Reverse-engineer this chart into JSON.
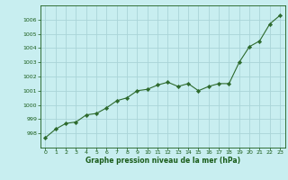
{
  "x": [
    0,
    1,
    2,
    3,
    4,
    5,
    6,
    7,
    8,
    9,
    10,
    11,
    12,
    13,
    14,
    15,
    16,
    17,
    18,
    19,
    20,
    21,
    22,
    23
  ],
  "y": [
    997.7,
    998.3,
    998.7,
    998.8,
    999.3,
    999.4,
    999.8,
    1000.3,
    1000.5,
    1001.0,
    1001.1,
    1001.4,
    1001.6,
    1001.3,
    1001.5,
    1001.0,
    1001.3,
    1001.5,
    1001.5,
    1003.0,
    1004.1,
    1004.5,
    1005.7,
    1006.3
  ],
  "line_color": "#2d6a2d",
  "marker": "D",
  "marker_size": 2.2,
  "bg_color": "#c8eef0",
  "grid_color": "#aad4d8",
  "plot_bg": "#c8eef0",
  "xlabel": "Graphe pression niveau de la mer (hPa)",
  "xlabel_color": "#1a5c1a",
  "tick_color": "#1a5c1a",
  "ylim": [
    997.0,
    1007.0
  ],
  "xlim": [
    -0.5,
    23.5
  ],
  "yticks": [
    998,
    999,
    1000,
    1001,
    1002,
    1003,
    1004,
    1005,
    1006
  ],
  "xticks": [
    0,
    1,
    2,
    3,
    4,
    5,
    6,
    7,
    8,
    9,
    10,
    11,
    12,
    13,
    14,
    15,
    16,
    17,
    18,
    19,
    20,
    21,
    22,
    23
  ]
}
